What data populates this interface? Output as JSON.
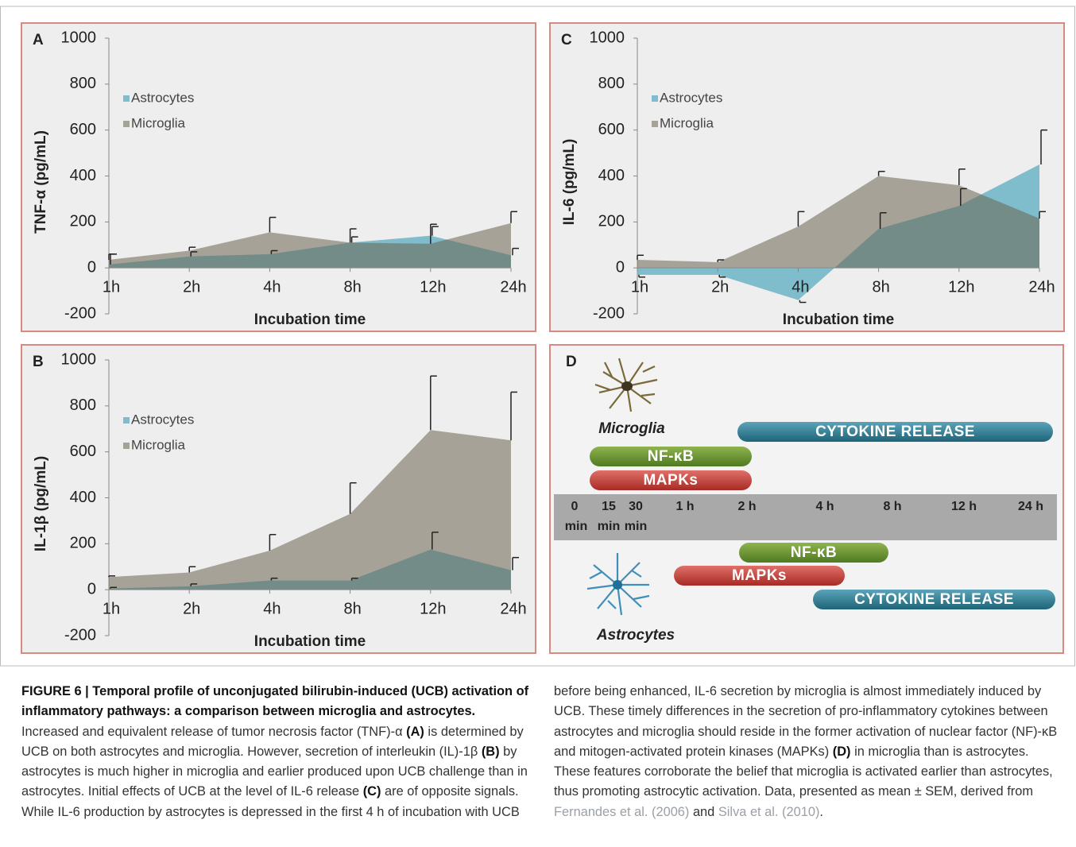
{
  "chart_data": [
    {
      "type": "area",
      "panel": "A",
      "y_label": "TNF-α (pg/mL)",
      "x_label": "Incubation time",
      "categories": [
        "1h",
        "2h",
        "4h",
        "8h",
        "12h",
        "24h"
      ],
      "ylim": [
        -200,
        1000
      ],
      "yticks": [
        -200,
        0,
        200,
        400,
        600,
        800,
        1000
      ],
      "legend": "upper left",
      "series": [
        {
          "name": "Astrocytes",
          "color": "#7fbccc",
          "values": [
            15,
            50,
            60,
            110,
            140,
            55
          ],
          "errors": [
            45,
            20,
            15,
            25,
            40,
            30
          ]
        },
        {
          "name": "Microglia",
          "color": "#6b6450",
          "values": [
            35,
            75,
            155,
            110,
            105,
            195
          ],
          "errors": [
            25,
            15,
            65,
            60,
            85,
            50
          ]
        }
      ]
    },
    {
      "type": "area",
      "panel": "B",
      "y_label": "IL-1β (pg/mL)",
      "x_label": "Incubation time",
      "categories": [
        "1h",
        "2h",
        "4h",
        "8h",
        "12h",
        "24h"
      ],
      "ylim": [
        -200,
        1000
      ],
      "yticks": [
        -200,
        0,
        200,
        400,
        600,
        800,
        1000
      ],
      "legend": "upper left",
      "series": [
        {
          "name": "Astrocytes",
          "color": "#7fbccc",
          "values": [
            5,
            15,
            40,
            40,
            175,
            85
          ],
          "errors": [
            5,
            10,
            10,
            10,
            75,
            55
          ]
        },
        {
          "name": "Microglia",
          "color": "#6b6450",
          "values": [
            55,
            75,
            170,
            330,
            695,
            650
          ],
          "errors": [
            5,
            25,
            70,
            135,
            235,
            210
          ]
        }
      ]
    },
    {
      "type": "area",
      "panel": "C",
      "y_label": "IL-6 (pg/mL)",
      "x_label": "Incubation time",
      "categories": [
        "1h",
        "2h",
        "4h",
        "8h",
        "12h",
        "24h"
      ],
      "ylim": [
        -200,
        1000
      ],
      "yticks": [
        -200,
        0,
        200,
        400,
        600,
        800,
        1000
      ],
      "legend": "upper left",
      "series": [
        {
          "name": "Astrocytes",
          "color": "#7fbccc",
          "values": [
            -30,
            -30,
            -140,
            170,
            270,
            450
          ],
          "errors": [
            10,
            10,
            10,
            70,
            75,
            150
          ]
        },
        {
          "name": "Microglia",
          "color": "#6b6450",
          "values": [
            35,
            25,
            180,
            400,
            360,
            215
          ],
          "errors": [
            20,
            10,
            65,
            20,
            70,
            30
          ]
        }
      ]
    }
  ],
  "diagram": {
    "panel": "D",
    "microglia": "Microglia",
    "astrocytes": "Astrocytes",
    "timeline": [
      "0",
      "15",
      "30",
      "1 h",
      "2 h",
      "4 h",
      "8 h",
      "12 h",
      "24 h"
    ],
    "minute_unit": "min",
    "microglia_bars": [
      "CYTOKINE  RELEASE",
      "NF-κB",
      "MAPKs"
    ],
    "astrocyte_bars": [
      "NF-κB",
      "MAPKs",
      "CYTOKINE  RELEASE"
    ]
  },
  "caption": {
    "runs": [
      "FIGURE 6 | Temporal profile of unconjugated bilirubin-induced (UCB) activation of inflammatory pathways: a comparison between microglia and astrocytes.",
      " Increased and equivalent release of tumor necrosis factor (TNF)-α ",
      "(A)",
      " is determined by UCB on both astrocytes and microglia. However, secretion of interleukin (IL)-1β ",
      "(B)",
      " by astrocytes is much higher in microglia and earlier produced upon UCB challenge than in astrocytes. Initial effects of UCB at the level of IL-6 release ",
      "(C)",
      " are of opposite signals. While IL-6 production by astrocytes is depressed in the first 4 h of incubation with UCB",
      "before being enhanced, IL-6 secretion by microglia is almost immediately induced by UCB. These timely differences in the secretion of pro-inflammatory cytokines between astrocytes and microglia should reside in the former activation of nuclear factor (NF)-κB and mitogen-activated protein kinases (MAPKs) ",
      "(D)",
      " in microglia than is astrocytes. These features corroborate the belief that microglia is activated earlier than astrocytes, thus promoting astrocytic activation. Data, presented as mean ± SEM, derived from ",
      "Fernandes et al. (2006)",
      " and ",
      "Silva et al. (2010)",
      "."
    ]
  }
}
